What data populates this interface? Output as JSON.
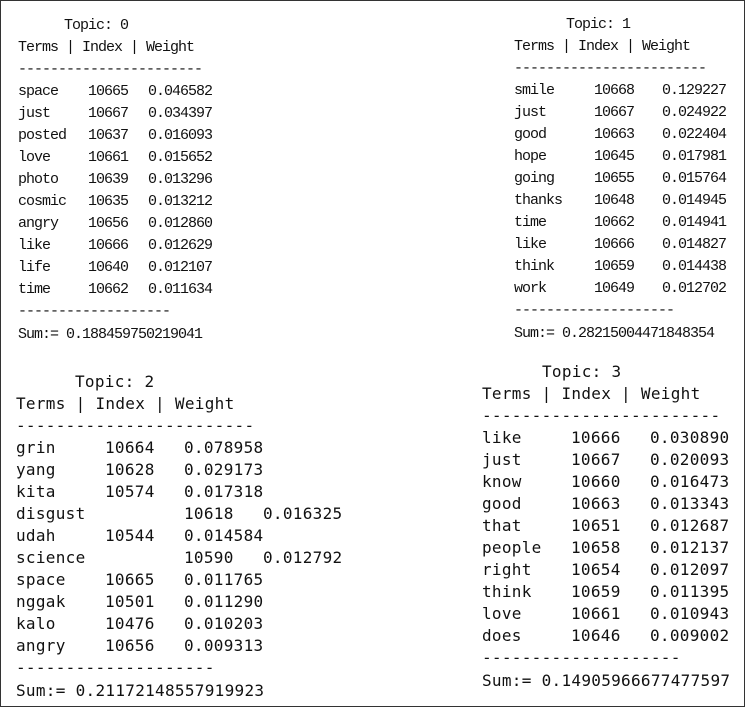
{
  "topics": [
    {
      "title": "Topic: 0",
      "header": "Terms | Index | Weight",
      "rule_top": "-----------------------",
      "rows": [
        {
          "term": "space",
          "index": "10665",
          "weight": "0.046582"
        },
        {
          "term": "just",
          "index": "10667",
          "weight": "0.034397"
        },
        {
          "term": "posted",
          "index": "10637",
          "weight": "0.016093"
        },
        {
          "term": "love",
          "index": "10661",
          "weight": "0.015652"
        },
        {
          "term": "photo",
          "index": "10639",
          "weight": "0.013296"
        },
        {
          "term": "cosmic",
          "index": "10635",
          "weight": "0.013212"
        },
        {
          "term": "angry",
          "index": "10656",
          "weight": "0.012860"
        },
        {
          "term": "like",
          "index": "10666",
          "weight": "0.012629"
        },
        {
          "term": "life",
          "index": "10640",
          "weight": "0.012107"
        },
        {
          "term": "time",
          "index": "10662",
          "weight": "0.011634"
        }
      ],
      "rule_bottom": "-------------------",
      "sum": "Sum:= 0.188459750219041"
    },
    {
      "title": "Topic: 1",
      "header": "Terms | Index | Weight",
      "rule_top": "------------------------",
      "rows": [
        {
          "term": "smile",
          "index": "10668",
          "weight": "0.129227"
        },
        {
          "term": "just",
          "index": "10667",
          "weight": "0.024922"
        },
        {
          "term": "good",
          "index": "10663",
          "weight": "0.022404"
        },
        {
          "term": "hope",
          "index": "10645",
          "weight": "0.017981"
        },
        {
          "term": "going",
          "index": "10655",
          "weight": "0.015764"
        },
        {
          "term": "thanks",
          "index": "10648",
          "weight": "0.014945"
        },
        {
          "term": "time",
          "index": "10662",
          "weight": "0.014941"
        },
        {
          "term": "like",
          "index": "10666",
          "weight": "0.014827"
        },
        {
          "term": "think",
          "index": "10659",
          "weight": "0.014438"
        },
        {
          "term": "work",
          "index": "10649",
          "weight": "0.012702"
        }
      ],
      "rule_bottom": "--------------------",
      "sum": "Sum:= 0.28215004471848354"
    },
    {
      "title": "Topic: 2",
      "header": "Terms | Index | Weight",
      "rule_top": "------------------------",
      "rows": [
        {
          "term": "grin",
          "index": "10664",
          "weight": "0.078958"
        },
        {
          "term": "yang",
          "index": "10628",
          "weight": "0.029173"
        },
        {
          "term": "kita",
          "index": "10574",
          "weight": "0.017318"
        },
        {
          "term": "disgust",
          "index": "10618",
          "weight": "0.016325"
        },
        {
          "term": "udah",
          "index": "10544",
          "weight": "0.014584"
        },
        {
          "term": "science",
          "index": "10590",
          "weight": "0.012792"
        },
        {
          "term": "space",
          "index": "10665",
          "weight": "0.011765"
        },
        {
          "term": "nggak",
          "index": "10501",
          "weight": "0.011290"
        },
        {
          "term": "kalo",
          "index": "10476",
          "weight": "0.010203"
        },
        {
          "term": "angry",
          "index": "10656",
          "weight": "0.009313"
        }
      ],
      "rule_bottom": "--------------------",
      "sum": "Sum:= 0.21172148557919923"
    },
    {
      "title": "Topic: 3",
      "header": "Terms | Index | Weight",
      "rule_top": "------------------------",
      "rows": [
        {
          "term": "like",
          "index": "10666",
          "weight": "0.030890"
        },
        {
          "term": "just",
          "index": "10667",
          "weight": "0.020093"
        },
        {
          "term": "know",
          "index": "10660",
          "weight": "0.016473"
        },
        {
          "term": "good",
          "index": "10663",
          "weight": "0.013343"
        },
        {
          "term": "that",
          "index": "10651",
          "weight": "0.012687"
        },
        {
          "term": "people",
          "index": "10658",
          "weight": "0.012137"
        },
        {
          "term": "right",
          "index": "10654",
          "weight": "0.012097"
        },
        {
          "term": "think",
          "index": "10659",
          "weight": "0.011395"
        },
        {
          "term": "love",
          "index": "10661",
          "weight": "0.010943"
        },
        {
          "term": "does",
          "index": "10646",
          "weight": "0.009002"
        }
      ],
      "rule_bottom": "--------------------",
      "sum": "Sum:= 0.14905966677477597"
    }
  ]
}
